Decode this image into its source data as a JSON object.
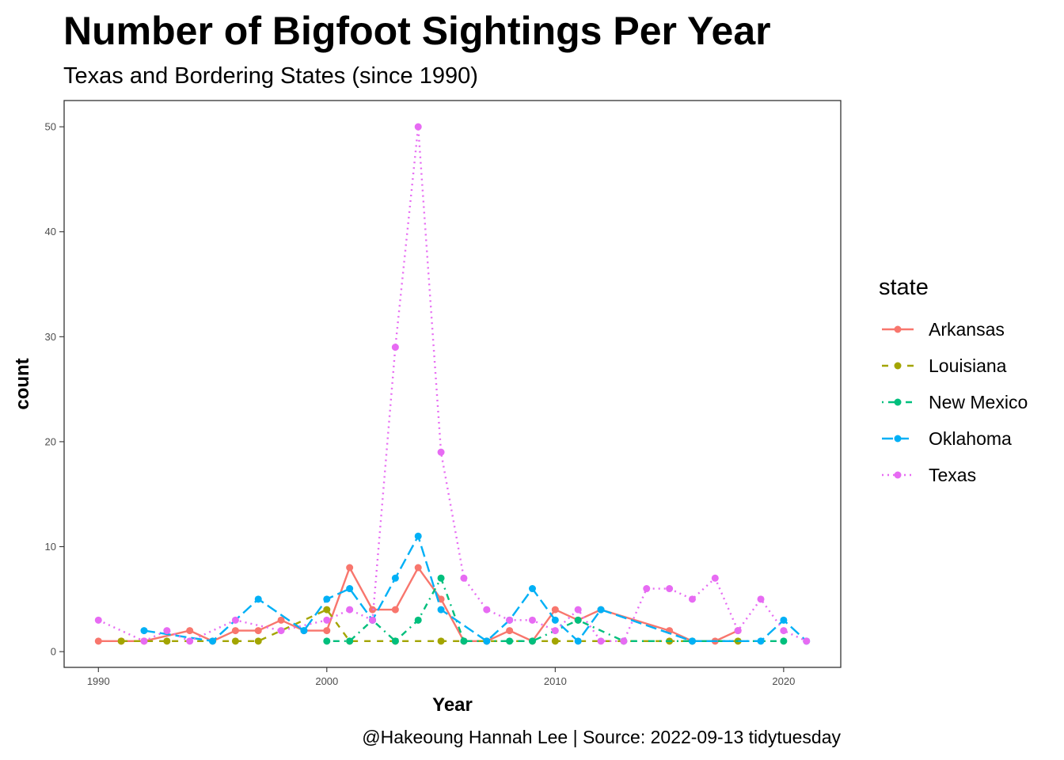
{
  "chart_data": {
    "type": "line",
    "title": "Number of Bigfoot Sightings Per Year",
    "subtitle": "Texas and Bordering States (since 1990)",
    "xlabel": "Year",
    "ylabel": "count",
    "caption": "@Hakeoung Hannah Lee | Source: 2022-09-13 tidytuesday",
    "legend_title": "state",
    "legend_position": "right",
    "grid": false,
    "xlim": [
      1988.5,
      2022.5
    ],
    "ylim": [
      -1.5,
      52.5
    ],
    "x_ticks": [
      {
        "value": 1990,
        "label": "1990"
      },
      {
        "value": 2000,
        "label": "2000"
      },
      {
        "value": 2010,
        "label": "2010"
      },
      {
        "value": 2020,
        "label": "2020"
      }
    ],
    "y_ticks": [
      {
        "value": 0,
        "label": "0"
      },
      {
        "value": 10,
        "label": "10"
      },
      {
        "value": 20,
        "label": "20"
      },
      {
        "value": 30,
        "label": "30"
      },
      {
        "value": 40,
        "label": "40"
      },
      {
        "value": 50,
        "label": "50"
      }
    ],
    "series": [
      {
        "name": "Arkansas",
        "color": "#F8766D",
        "dash": "solid",
        "points": [
          [
            1990,
            1
          ],
          [
            1991,
            1
          ],
          [
            1992,
            1
          ],
          [
            1994,
            2
          ],
          [
            1995,
            1
          ],
          [
            1996,
            2
          ],
          [
            1997,
            2
          ],
          [
            1998,
            3
          ],
          [
            1999,
            2
          ],
          [
            2000,
            2
          ],
          [
            2001,
            8
          ],
          [
            2002,
            4
          ],
          [
            2003,
            4
          ],
          [
            2004,
            8
          ],
          [
            2005,
            5
          ],
          [
            2006,
            1
          ],
          [
            2007,
            1
          ],
          [
            2008,
            2
          ],
          [
            2009,
            1
          ],
          [
            2010,
            4
          ],
          [
            2011,
            3
          ],
          [
            2012,
            4
          ],
          [
            2015,
            2
          ],
          [
            2016,
            1
          ],
          [
            2017,
            1
          ],
          [
            2018,
            2
          ]
        ]
      },
      {
        "name": "Louisiana",
        "color": "#A3A500",
        "dash": "dashed",
        "points": [
          [
            1991,
            1
          ],
          [
            1993,
            1
          ],
          [
            1996,
            1
          ],
          [
            1997,
            1
          ],
          [
            2000,
            4
          ],
          [
            2001,
            1
          ],
          [
            2003,
            1
          ],
          [
            2005,
            1
          ],
          [
            2010,
            1
          ],
          [
            2015,
            1
          ],
          [
            2018,
            1
          ]
        ]
      },
      {
        "name": "New Mexico",
        "color": "#00BF7D",
        "dash": "dotdash",
        "points": [
          [
            2000,
            1
          ],
          [
            2001,
            1
          ],
          [
            2002,
            3
          ],
          [
            2003,
            1
          ],
          [
            2004,
            3
          ],
          [
            2005,
            7
          ],
          [
            2006,
            1
          ],
          [
            2007,
            1
          ],
          [
            2008,
            1
          ],
          [
            2009,
            1
          ],
          [
            2011,
            3
          ],
          [
            2013,
            1
          ],
          [
            2016,
            1
          ],
          [
            2020,
            1
          ]
        ]
      },
      {
        "name": "Oklahoma",
        "color": "#00B0F6",
        "dash": "longdash",
        "points": [
          [
            1992,
            2
          ],
          [
            1995,
            1
          ],
          [
            1997,
            5
          ],
          [
            1999,
            2
          ],
          [
            2000,
            5
          ],
          [
            2001,
            6
          ],
          [
            2002,
            3
          ],
          [
            2003,
            7
          ],
          [
            2004,
            11
          ],
          [
            2005,
            4
          ],
          [
            2007,
            1
          ],
          [
            2008,
            3
          ],
          [
            2009,
            6
          ],
          [
            2010,
            3
          ],
          [
            2011,
            1
          ],
          [
            2012,
            4
          ],
          [
            2016,
            1
          ],
          [
            2019,
            1
          ],
          [
            2020,
            3
          ],
          [
            2021,
            1
          ]
        ]
      },
      {
        "name": "Texas",
        "color": "#E76BF3",
        "dash": "dotted",
        "points": [
          [
            1990,
            3
          ],
          [
            1992,
            1
          ],
          [
            1993,
            2
          ],
          [
            1994,
            1
          ],
          [
            1996,
            3
          ],
          [
            1998,
            2
          ],
          [
            2000,
            3
          ],
          [
            2001,
            4
          ],
          [
            2002,
            3
          ],
          [
            2003,
            29
          ],
          [
            2004,
            50
          ],
          [
            2005,
            19
          ],
          [
            2006,
            7
          ],
          [
            2007,
            4
          ],
          [
            2008,
            3
          ],
          [
            2009,
            3
          ],
          [
            2010,
            2
          ],
          [
            2011,
            4
          ],
          [
            2012,
            1
          ],
          [
            2013,
            1
          ],
          [
            2014,
            6
          ],
          [
            2015,
            6
          ],
          [
            2016,
            5
          ],
          [
            2017,
            7
          ],
          [
            2018,
            2
          ],
          [
            2019,
            5
          ],
          [
            2020,
            2
          ],
          [
            2021,
            1
          ]
        ]
      }
    ]
  }
}
